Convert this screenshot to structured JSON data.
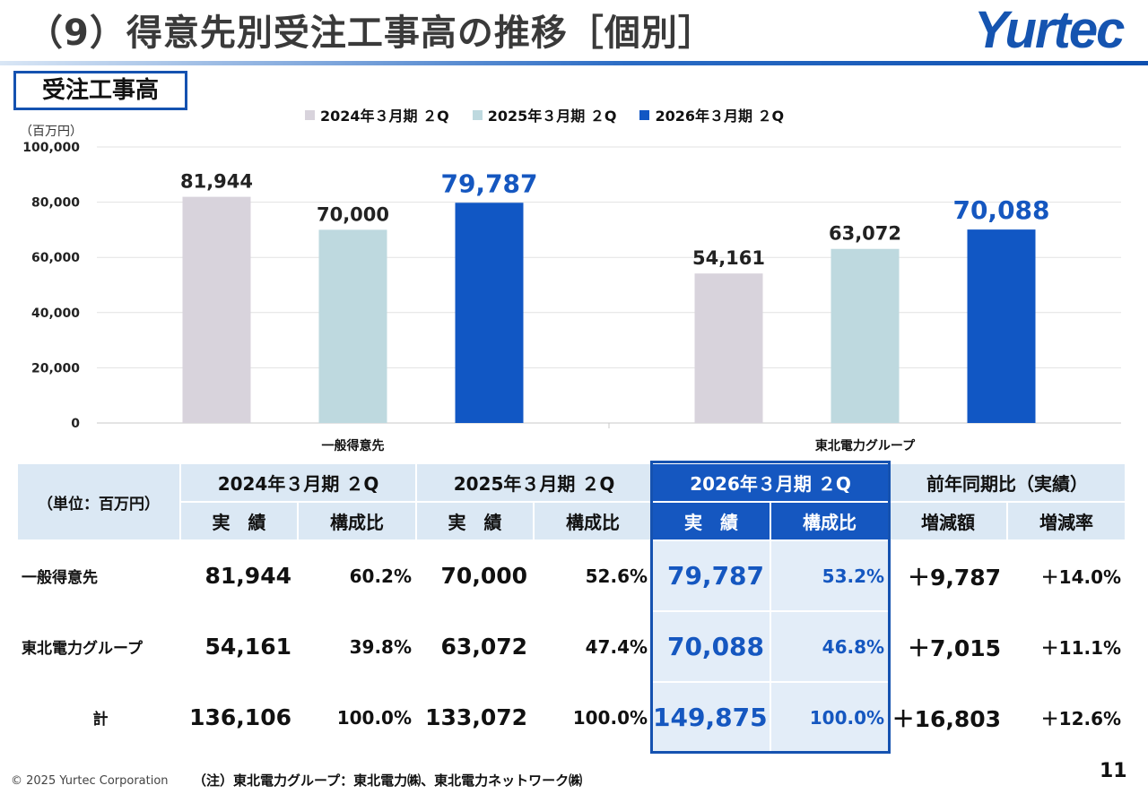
{
  "title": "（9）得意先別受注工事高の推移［個別］",
  "logo": "Yurtec",
  "section_label": "受注工事高",
  "chart_data": {
    "type": "bar",
    "unit_label": "（百万円）",
    "ylim": [
      0,
      100000
    ],
    "yticks": [
      0,
      20000,
      40000,
      60000,
      80000,
      100000
    ],
    "ytick_labels": [
      "0",
      "20,000",
      "40,000",
      "60,000",
      "80,000",
      "100,000"
    ],
    "categories": [
      "一般得意先",
      "東北電力グループ"
    ],
    "series": [
      {
        "name": "2024年３月期 ２Q",
        "color": "#d8d3dc",
        "values": [
          81944,
          54161
        ],
        "labels": [
          "81,944",
          "54,161"
        ]
      },
      {
        "name": "2025年３月期 ２Q",
        "color": "#bed9df",
        "values": [
          70000,
          63072
        ],
        "labels": [
          "70,000",
          "63,072"
        ]
      },
      {
        "name": "2026年３月期 ２Q",
        "color": "#1157c4",
        "values": [
          79787,
          70088
        ],
        "labels": [
          "79,787",
          "70,088"
        ]
      }
    ]
  },
  "table": {
    "unit": "（単位：百万円）",
    "periods": [
      "2024年３月期 ２Q",
      "2025年３月期 ２Q",
      "2026年３月期 ２Q",
      "前年同期比（実績）"
    ],
    "subheaders": [
      "実　績",
      "構成比",
      "実　績",
      "構成比",
      "実　績",
      "構成比",
      "増減額",
      "増減率"
    ],
    "rows": [
      {
        "name": "一般得意先",
        "v2024": "81,944",
        "p2024": "60.2%",
        "v2025": "70,000",
        "p2025": "52.6%",
        "v2026": "79,787",
        "p2026": "53.2%",
        "diff": "＋9,787",
        "rate": "＋14.0%"
      },
      {
        "name": "東北電力グループ",
        "v2024": "54,161",
        "p2024": "39.8%",
        "v2025": "63,072",
        "p2025": "47.4%",
        "v2026": "70,088",
        "p2026": "46.8%",
        "diff": "＋7,015",
        "rate": "＋11.1%"
      },
      {
        "name": "計",
        "v2024": "136,106",
        "p2024": "100.0%",
        "v2025": "133,072",
        "p2025": "100.0%",
        "v2026": "149,875",
        "p2026": "100.0%",
        "diff": "＋16,803",
        "rate": "＋12.6%"
      }
    ]
  },
  "footer": {
    "copyright": "© 2025 Yurtec Corporation",
    "note": "（注）東北電力グループ：東北電力㈱、東北電力ネットワーク㈱",
    "page": "11"
  }
}
